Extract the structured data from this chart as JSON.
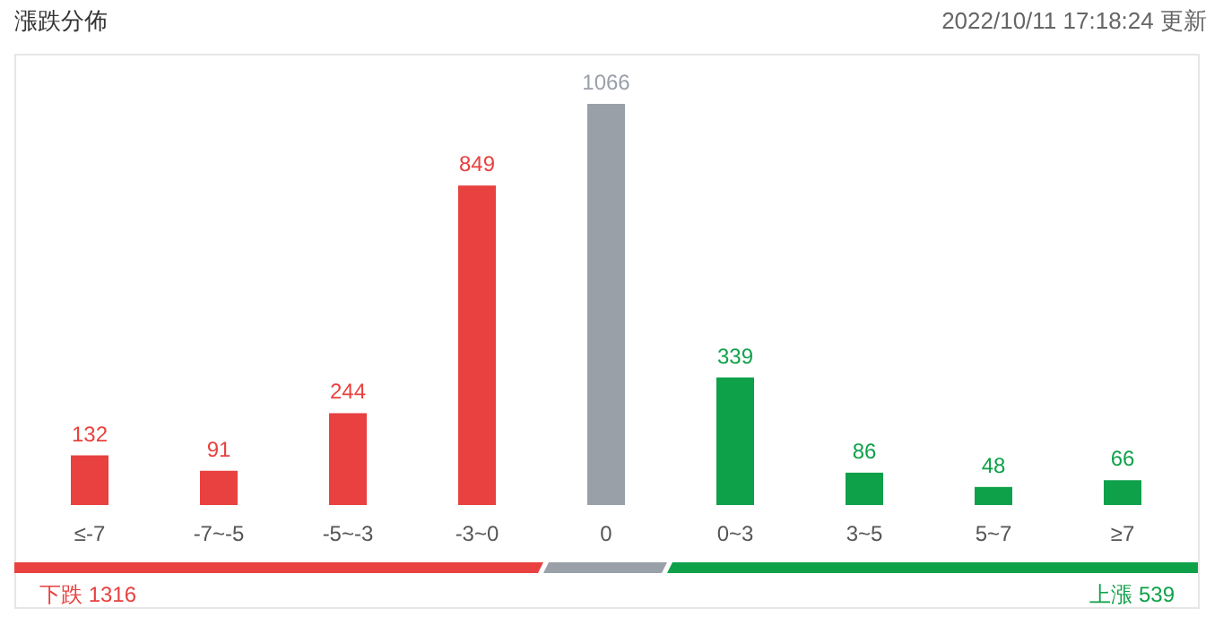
{
  "chart_data": {
    "type": "bar",
    "title": "漲跌分佈",
    "categories": [
      "≤-7",
      "-7~-5",
      "-5~-3",
      "-3~0",
      "0",
      "0~3",
      "3~5",
      "5~7",
      "≥7"
    ],
    "values": [
      132,
      91,
      244,
      849,
      1066,
      339,
      86,
      48,
      66
    ],
    "colors": [
      "#e8413f",
      "#e8413f",
      "#e8413f",
      "#e8413f",
      "#9aa0a8",
      "#0fa14a",
      "#0fa14a",
      "#0fa14a",
      "#0fa14a"
    ],
    "data_labels": true,
    "annotations": [
      "2022/10/11 17:18:24  更新",
      "下跌 1316",
      "上漲 539"
    ]
  }
}
